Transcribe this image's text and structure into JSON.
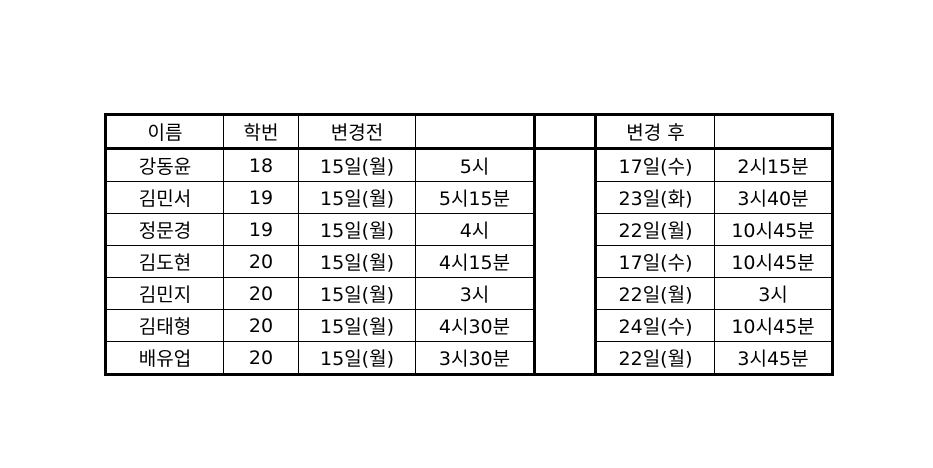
{
  "header": {
    "name": "이름",
    "student_id": "학번",
    "before": "변경전",
    "before_time": "",
    "gap": "",
    "after": "변경 후",
    "after_time": ""
  },
  "rows": [
    {
      "name": "강동윤",
      "id": "18",
      "before_day": "15일(월)",
      "before_time": "5시",
      "after_day": "17일(수)",
      "after_time": "2시15분"
    },
    {
      "name": "김민서",
      "id": "19",
      "before_day": "15일(월)",
      "before_time": "5시15분",
      "after_day": "23일(화)",
      "after_time": "3시40분"
    },
    {
      "name": "정문경",
      "id": "19",
      "before_day": "15일(월)",
      "before_time": "4시",
      "after_day": "22일(월)",
      "after_time": "10시45분"
    },
    {
      "name": "김도현",
      "id": "20",
      "before_day": "15일(월)",
      "before_time": "4시15분",
      "after_day": "17일(수)",
      "after_time": "10시45분"
    },
    {
      "name": "김민지",
      "id": "20",
      "before_day": "15일(월)",
      "before_time": "3시",
      "after_day": "22일(월)",
      "after_time": "3시"
    },
    {
      "name": "김태형",
      "id": "20",
      "before_day": "15일(월)",
      "before_time": "4시30분",
      "after_day": "24일(수)",
      "after_time": "10시45분"
    },
    {
      "name": "배유업",
      "id": "20",
      "before_day": "15일(월)",
      "before_time": "3시30분",
      "after_day": "22일(월)",
      "after_time": "3시45분"
    }
  ]
}
